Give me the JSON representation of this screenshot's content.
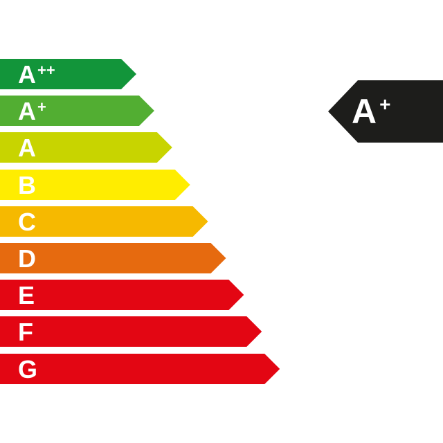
{
  "scale": [
    {
      "letter": "A",
      "suffix": "++",
      "color": "#12953a"
    },
    {
      "letter": "A",
      "suffix": "+",
      "color": "#52ae32"
    },
    {
      "letter": "A",
      "suffix": "",
      "color": "#c8d400"
    },
    {
      "letter": "B",
      "suffix": "",
      "color": "#ffed00"
    },
    {
      "letter": "C",
      "suffix": "",
      "color": "#f6b900"
    },
    {
      "letter": "D",
      "suffix": "",
      "color": "#e66a0f"
    },
    {
      "letter": "E",
      "suffix": "",
      "color": "#e30613"
    },
    {
      "letter": "F",
      "suffix": "",
      "color": "#e30613"
    },
    {
      "letter": "G",
      "suffix": "",
      "color": "#e30613"
    }
  ],
  "rating": {
    "letter": "A",
    "suffix": "+",
    "color": "#1d1d1b"
  }
}
